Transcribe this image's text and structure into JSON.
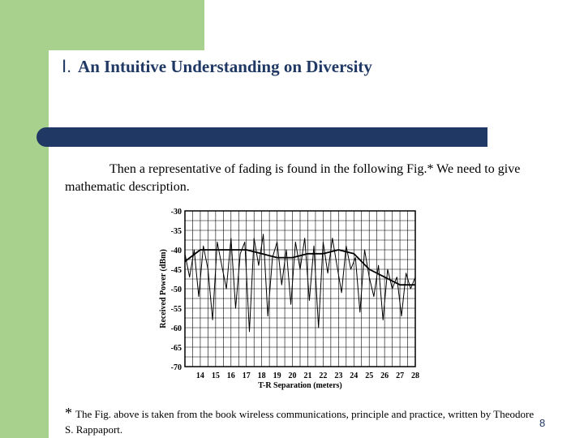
{
  "slide": {
    "title_number": "Ⅰ.",
    "title": "An Intuitive Understanding on Diversity",
    "body_text": "Then a representative of fading is found in the following Fig.*  We need to give mathematic description.",
    "footnote_star": "*",
    "footnote": "The Fig. above is taken from the book wireless communications, principle and practice, written by Theodore S. Rappaport.",
    "page_number": "8",
    "colors": {
      "accent_green": "#a9d18e",
      "navy": "#1f3864"
    }
  },
  "chart_data": {
    "type": "line",
    "xlabel": "T-R Separation (meters)",
    "ylabel": "Received Power (dBm)",
    "xlim": [
      13,
      28
    ],
    "ylim": [
      -70,
      -30
    ],
    "x_ticks": [
      14,
      15,
      16,
      17,
      18,
      19,
      20,
      21,
      22,
      23,
      24,
      25,
      26,
      27,
      28
    ],
    "y_ticks": [
      -30,
      -35,
      -40,
      -45,
      -50,
      -55,
      -60,
      -65,
      -70
    ],
    "grid": true,
    "series": [
      {
        "style": "fading",
        "x": [
          13,
          13.3,
          13.6,
          13.9,
          14.2,
          14.5,
          14.8,
          15.1,
          15.4,
          15.7,
          16.0,
          16.3,
          16.6,
          16.9,
          17.2,
          17.5,
          17.8,
          18.1,
          18.4,
          18.7,
          19.0,
          19.3,
          19.6,
          19.9,
          20.2,
          20.5,
          20.8,
          21.1,
          21.4,
          21.7,
          22.0,
          22.3,
          22.6,
          22.9,
          23.2,
          23.5,
          23.8,
          24.1,
          24.4,
          24.7,
          25.0,
          25.3,
          25.6,
          25.9,
          26.2,
          26.5,
          26.8,
          27.1,
          27.4,
          27.7,
          28
        ],
        "y": [
          -41,
          -47,
          -40,
          -52,
          -39,
          -45,
          -58,
          -38,
          -44,
          -50,
          -37,
          -55,
          -41,
          -38,
          -61,
          -37,
          -44,
          -36,
          -57,
          -42,
          -38,
          -49,
          -40,
          -54,
          -38,
          -45,
          -37,
          -53,
          -39,
          -60,
          -38,
          -46,
          -37,
          -44,
          -51,
          -39,
          -45,
          -42,
          -56,
          -40,
          -47,
          -52,
          -44,
          -58,
          -45,
          -50,
          -47,
          -57,
          -46,
          -50,
          -47
        ]
      },
      {
        "style": "average",
        "x": [
          13,
          14,
          15,
          16,
          17,
          18,
          19,
          20,
          21,
          22,
          23,
          24,
          25,
          26,
          27,
          28
        ],
        "y": [
          -43,
          -40,
          -40,
          -40,
          -40,
          -41,
          -42,
          -42,
          -41,
          -41,
          -40,
          -41,
          -45,
          -47,
          -49,
          -49
        ]
      }
    ]
  }
}
